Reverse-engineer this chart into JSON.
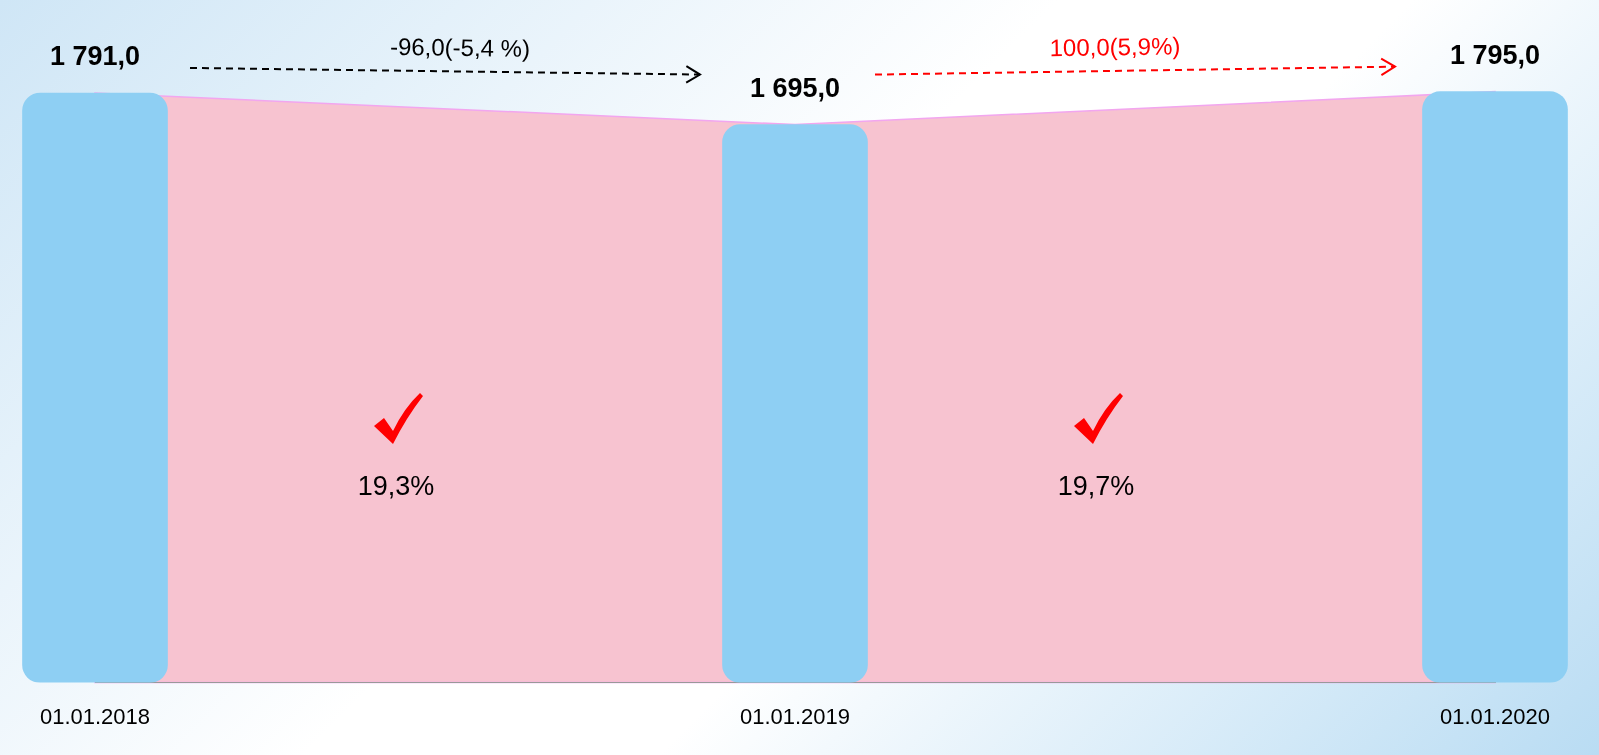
{
  "chart_data": {
    "type": "bar",
    "categories": [
      "01.01.2018",
      "01.01.2019",
      "01.01.2020"
    ],
    "series": [
      {
        "color": "#8ecff3",
        "values": [
          1791,
          1695,
          1795
        ],
        "value_labels": [
          "1 791,0",
          "1 695,0",
          "1 795,0"
        ]
      }
    ],
    "tick_labels": "x",
    "grid": false,
    "legend": false,
    "annotations": [
      "-96,0(-5,4 %)",
      "100,0(5,9%)",
      "19,3%",
      "19,7%"
    ]
  }
}
